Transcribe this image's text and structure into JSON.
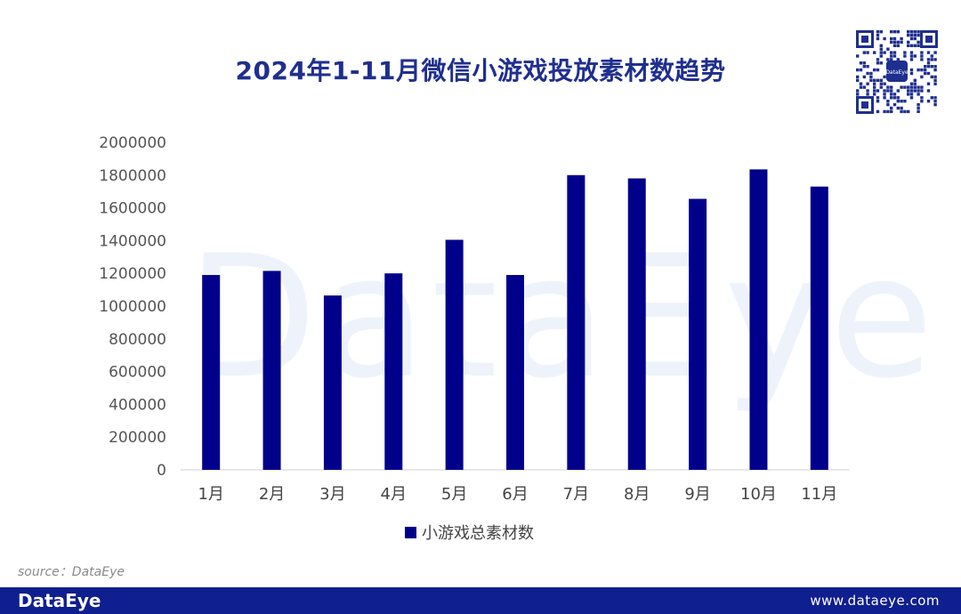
{
  "title": "2024年1-11月微信小游戏投放素材数趋势",
  "watermark": "DataEye",
  "qr_badge": "DataEye",
  "source": "source：DataEye",
  "footer": {
    "brand": "DataEye",
    "url": "www.dataeye.com"
  },
  "colors": {
    "bar": "#00008b",
    "title": "#1f2f8f",
    "footer": "#0f1f8f"
  },
  "chart_data": {
    "type": "bar",
    "title": "2024年1-11月微信小游戏投放素材数趋势",
    "categories": [
      "1月",
      "2月",
      "3月",
      "4月",
      "5月",
      "6月",
      "7月",
      "8月",
      "9月",
      "10月",
      "11月"
    ],
    "series": [
      {
        "name": "小游戏总素材数",
        "values": [
          1190000,
          1215000,
          1065000,
          1200000,
          1405000,
          1190000,
          1800000,
          1780000,
          1655000,
          1835000,
          1730000
        ]
      }
    ],
    "yticks": [
      0,
      200000,
      400000,
      600000,
      800000,
      1000000,
      1200000,
      1400000,
      1600000,
      1800000,
      2000000
    ],
    "ylim": [
      0,
      2000000
    ],
    "grid": false,
    "legend": "bottom-center"
  }
}
